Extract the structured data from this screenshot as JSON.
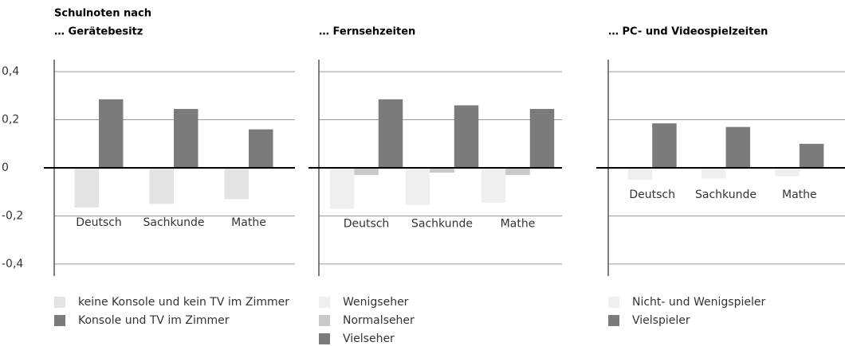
{
  "chart_data": [
    {
      "type": "bar",
      "supertitle": "Schulnoten nach",
      "title": "… Gerätebesitz",
      "categories": [
        "Deutsch",
        "Sachkunde",
        "Mathe"
      ],
      "series": [
        {
          "name": "keine Konsole und kein TV im Zimmer",
          "color": "#e3e3e3",
          "values": [
            -0.165,
            -0.15,
            -0.13
          ]
        },
        {
          "name": "Konsole und TV im Zimmer",
          "color": "#7b7b7b",
          "values": [
            0.285,
            0.245,
            0.16
          ]
        }
      ],
      "ylim": [
        -0.45,
        0.45
      ],
      "yticks": [
        {
          "value": -0.4,
          "label": "-0,4"
        },
        {
          "value": -0.2,
          "label": "-0,2"
        },
        0,
        {
          "value": 0.2,
          "label": "0,2"
        },
        {
          "value": 0.4,
          "label": "0,4"
        }
      ],
      "grid": true
    },
    {
      "type": "bar",
      "title": "… Fernsehzeiten",
      "categories": [
        "Deutsch",
        "Sachkunde",
        "Mathe"
      ],
      "series": [
        {
          "name": "Wenigseher",
          "color": "#efefef",
          "values": [
            -0.17,
            -0.155,
            -0.145
          ]
        },
        {
          "name": "Normalseher",
          "color": "#c9c9c9",
          "values": [
            -0.03,
            -0.02,
            -0.03
          ]
        },
        {
          "name": "Vielseher",
          "color": "#7b7b7b",
          "values": [
            0.285,
            0.26,
            0.245
          ]
        }
      ],
      "ylim": [
        -0.45,
        0.45
      ],
      "grid": true
    },
    {
      "type": "bar",
      "title": "… PC- und Videospielzeiten",
      "categories": [
        "Deutsch",
        "Sachkunde",
        "Mathe"
      ],
      "series": [
        {
          "name": "Nicht- und Wenigspieler",
          "color": "#efefef",
          "values": [
            -0.05,
            -0.045,
            -0.035
          ]
        },
        {
          "name": "Vielspieler",
          "color": "#7b7b7b",
          "values": [
            0.185,
            0.17,
            0.1
          ]
        }
      ],
      "ylim": [
        -0.45,
        0.45
      ],
      "grid": true
    }
  ]
}
